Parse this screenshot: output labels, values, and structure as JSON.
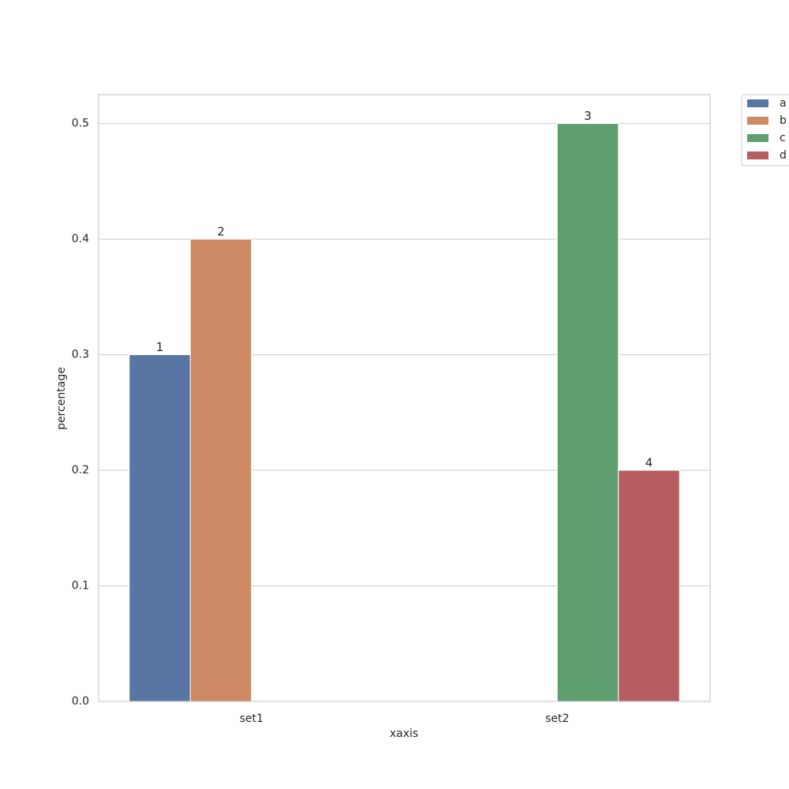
{
  "chart_data": {
    "type": "bar",
    "xlabel": "xaxis",
    "ylabel": "percentage",
    "categories": [
      "set1",
      "set2"
    ],
    "series": [
      {
        "name": "a",
        "color": "#5975a4",
        "values": [
          0.3,
          null
        ],
        "annotations": [
          "1",
          null
        ]
      },
      {
        "name": "b",
        "color": "#cc8963",
        "values": [
          0.4,
          null
        ],
        "annotations": [
          "2",
          null
        ]
      },
      {
        "name": "c",
        "color": "#5f9e6e",
        "values": [
          null,
          0.5
        ],
        "annotations": [
          null,
          "3"
        ]
      },
      {
        "name": "d",
        "color": "#b55d60",
        "values": [
          null,
          0.2
        ],
        "annotations": [
          null,
          "4"
        ]
      }
    ],
    "ylim": [
      0,
      0.525
    ],
    "yticks": [
      {
        "value": 0,
        "label": "0.0"
      },
      0.1,
      0.2,
      0.3,
      0.4,
      0.5
    ],
    "grid": true,
    "legend": "outside-upper-right"
  }
}
